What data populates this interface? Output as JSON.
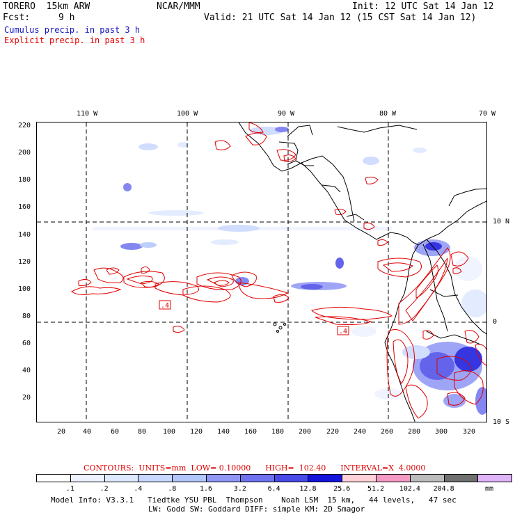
{
  "header": {
    "model": "TORERO  15km ARW",
    "center": "NCAR/MMM",
    "init": "Init: 12 UTC Sat 14 Jan 12",
    "fcst_label": "Fcst:",
    "fcst_value": "9 h",
    "valid": "Valid: 21 UTC Sat 14 Jan 12 (15 CST Sat 14 Jan 12)",
    "cumulus_title": "Cumulus precip. in past 3 h",
    "explicit_title": "Explicit precip. in past 3 h"
  },
  "top_lon_labels": [
    "110 W",
    "100 W",
    "90 W",
    "80 W",
    "70 W"
  ],
  "right_lat_labels": [
    "10 N",
    "0",
    "10 S"
  ],
  "y_grid_labels": [
    "220",
    "200",
    "180",
    "160",
    "140",
    "120",
    "100",
    "80",
    "60",
    "40",
    "20"
  ],
  "x_grid_labels": [
    "20",
    "40",
    "60",
    "80",
    "100",
    "120",
    "140",
    "160",
    "180",
    "200",
    "220",
    "240",
    "260",
    "280",
    "300",
    "320"
  ],
  "contour_labels": [
    ".4",
    ".4"
  ],
  "contour_info": "CONTOURS:  UNITS=mm  LOW= 0.10000      HIGH=  102.40      INTERVAL=X  4.0000",
  "colorbar": {
    "colors": [
      "#ffffff",
      "#eef3ff",
      "#dfe9ff",
      "#c8d8ff",
      "#b2c6fc",
      "#8f96f5",
      "#6f73ef",
      "#4a4ae8",
      "#1414dc",
      "#ffd0d8",
      "#f49ac4",
      "#bcbcbc",
      "#707070",
      "#e0b4f8"
    ],
    "labels": [
      ".1",
      ".2",
      ".4",
      ".8",
      "1.6",
      "3.2",
      "6.4",
      "12.8",
      "25.6",
      "51.2",
      "102.4",
      "204.8"
    ],
    "units": "mm"
  },
  "footer": {
    "line1": "Model Info: V3.3.1   Tiedtke YSU PBL  Thompson    Noah LSM  15 km,   44 levels,   47 sec",
    "line2": "LW: Godd SW: Goddard DIFF: simple KM: 2D Smagor"
  },
  "colors": {
    "contour": "#e00000",
    "cumulus": "#2020e0",
    "coast": "#000000"
  }
}
